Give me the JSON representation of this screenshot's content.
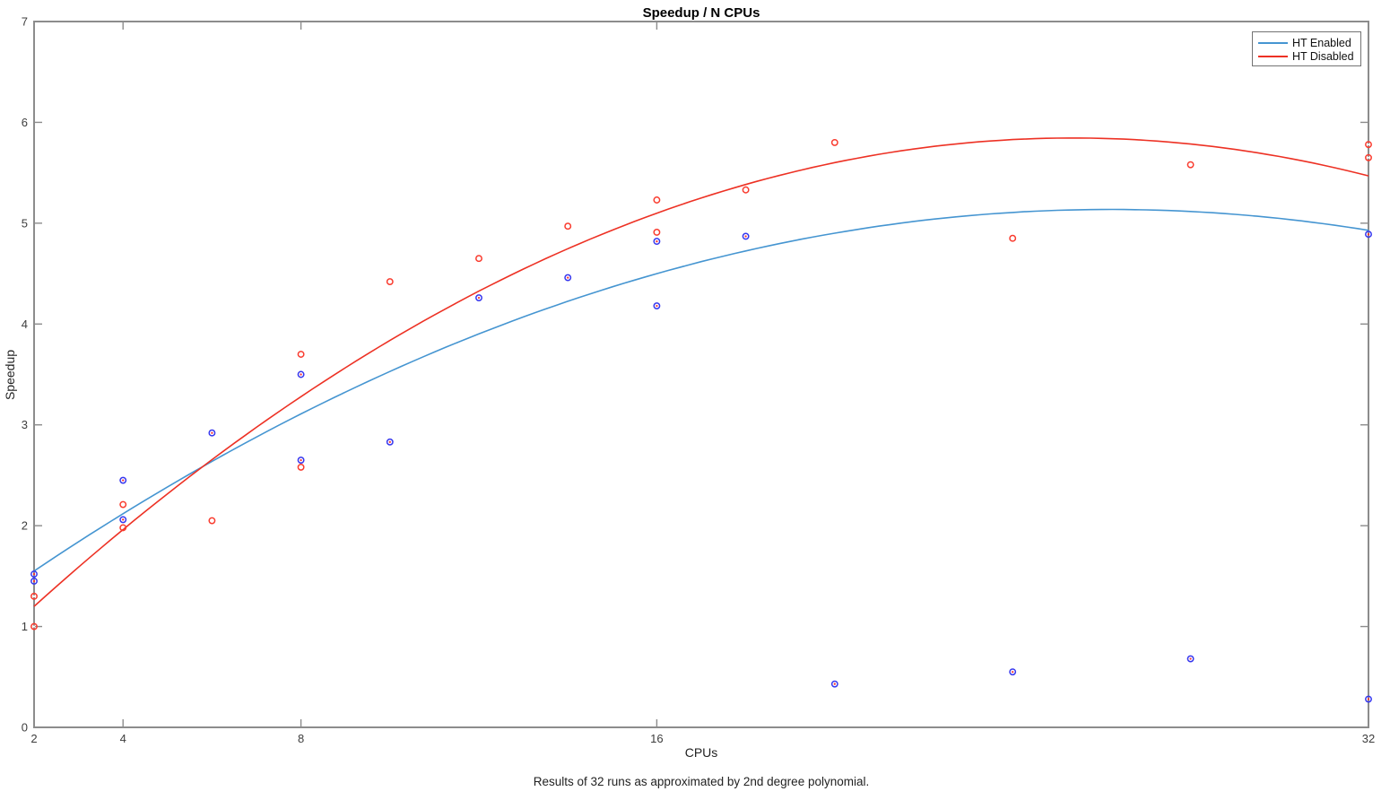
{
  "title": "Speedup / N CPUs",
  "caption": "Results of 32 runs as approximated by 2nd degree polynomial.",
  "colors": {
    "axis_box": "#8c8c8c",
    "tick_text": "#3d3d3d",
    "ht_enabled_line": "#4595d1",
    "ht_enabled_marker": "#3636ee",
    "ht_enabled_marker_center": "#ff2a2a",
    "ht_disabled_line": "#ed3124",
    "ht_disabled_marker": "#f93b2e",
    "legend_border": "#737373"
  },
  "chart_data": {
    "type": "scatter",
    "title": "Speedup / N CPUs",
    "xlabel": "CPUs",
    "ylabel": "Speedup",
    "xlim": [
      2,
      32
    ],
    "ylim": [
      0,
      7
    ],
    "x_scale": "linear",
    "x_ticks": [
      2,
      4,
      8,
      16,
      32
    ],
    "y_ticks": [
      0,
      1,
      2,
      3,
      4,
      5,
      6,
      7
    ],
    "grid": false,
    "legend_position": "top-right",
    "note": "markers are hollow circles; each series also has a 2nd-degree polynomial fit line; fit_poly = [a,b,c] for y = a + b*x + c*x^2",
    "series": [
      {
        "name": "HT Enabled",
        "line_color": "#4595d1",
        "marker_color": "#3636ee",
        "marker_center_color": "#ff2a2a",
        "points": [
          [
            2,
            1.52
          ],
          [
            2,
            1.45
          ],
          [
            4,
            2.45
          ],
          [
            4,
            2.06
          ],
          [
            6,
            2.92
          ],
          [
            8,
            3.5
          ],
          [
            8,
            2.65
          ],
          [
            10,
            2.83
          ],
          [
            12,
            4.26
          ],
          [
            14,
            4.46
          ],
          [
            16,
            4.82
          ],
          [
            16,
            4.18
          ],
          [
            18,
            4.87
          ],
          [
            20,
            0.43
          ],
          [
            24,
            0.55
          ],
          [
            28,
            0.68
          ],
          [
            32,
            4.89
          ],
          [
            32,
            0.28
          ]
        ],
        "fit_poly": [
          0.9325,
          0.321,
          -0.006128
        ],
        "fit_endpoints": [
          [
            2,
            1.55
          ],
          [
            32,
            4.93
          ]
        ],
        "fit_peak": [
          26.2,
          5.15
        ]
      },
      {
        "name": "HT Disabled",
        "line_color": "#ed3124",
        "marker_color": "#f93b2e",
        "marker_center_color": "#ffffff",
        "points": [
          [
            2,
            1.3
          ],
          [
            2,
            1.0
          ],
          [
            4,
            2.21
          ],
          [
            4,
            1.98
          ],
          [
            6,
            2.05
          ],
          [
            8,
            3.7
          ],
          [
            8,
            2.58
          ],
          [
            10,
            4.42
          ],
          [
            12,
            4.65
          ],
          [
            14,
            4.97
          ],
          [
            16,
            5.23
          ],
          [
            16,
            4.91
          ],
          [
            18,
            5.33
          ],
          [
            20,
            5.8
          ],
          [
            24,
            4.85
          ],
          [
            28,
            5.58
          ],
          [
            32,
            5.78
          ],
          [
            32,
            5.65
          ]
        ],
        "fit_poly": [
          0.3704,
          0.4318,
          -0.0085148
        ],
        "fit_endpoints": [
          [
            2,
            1.2
          ],
          [
            32,
            5.47
          ]
        ],
        "fit_peak": [
          25.4,
          5.84
        ]
      }
    ]
  }
}
